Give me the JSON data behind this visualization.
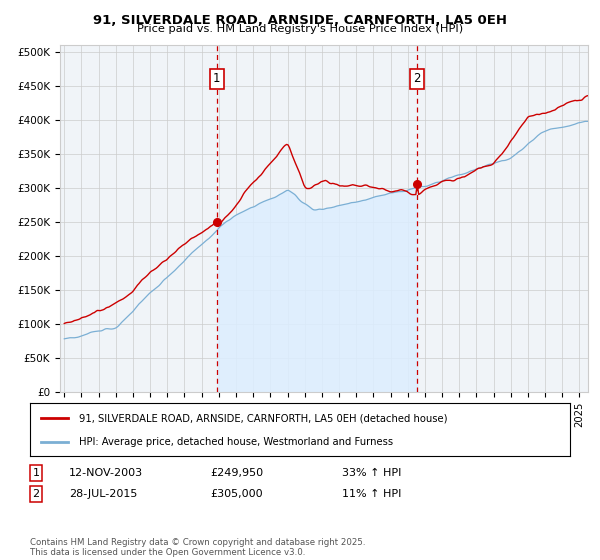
{
  "title_line1": "91, SILVERDALE ROAD, ARNSIDE, CARNFORTH, LA5 0EH",
  "title_line2": "Price paid vs. HM Land Registry's House Price Index (HPI)",
  "ylabel_ticks": [
    "£0",
    "£50K",
    "£100K",
    "£150K",
    "£200K",
    "£250K",
    "£300K",
    "£350K",
    "£400K",
    "£450K",
    "£500K"
  ],
  "ytick_values": [
    0,
    50000,
    100000,
    150000,
    200000,
    250000,
    300000,
    350000,
    400000,
    450000,
    500000
  ],
  "xlim_start": 1994.75,
  "xlim_end": 2025.5,
  "ylim_min": 0,
  "ylim_max": 510000,
  "purchase1_date": "12-NOV-2003",
  "purchase1_price": 249950,
  "purchase1_hpi_str": "33% ↑ HPI",
  "purchase1_year": 2003.87,
  "purchase2_date": "28-JUL-2015",
  "purchase2_price": 305000,
  "purchase2_hpi_str": "11% ↑ HPI",
  "purchase2_year": 2015.56,
  "red_color": "#cc0000",
  "blue_color": "#7bafd4",
  "shade_color": "#ddeeff",
  "grid_color": "#cccccc",
  "bg_color": "#ffffff",
  "chart_bg": "#f0f4f8",
  "legend_label_red": "91, SILVERDALE ROAD, ARNSIDE, CARNFORTH, LA5 0EH (detached house)",
  "legend_label_blue": "HPI: Average price, detached house, Westmorland and Furness",
  "footnote": "Contains HM Land Registry data © Crown copyright and database right 2025.\nThis data is licensed under the Open Government Licence v3.0."
}
